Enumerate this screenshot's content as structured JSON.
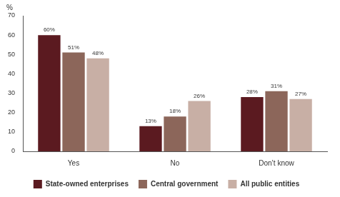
{
  "chart_data": {
    "type": "bar",
    "ylabel": "%",
    "categories": [
      "Yes",
      "No",
      "Don’t know"
    ],
    "series": [
      {
        "name": "State-owned enterprises",
        "color": "#5b1a20",
        "values": [
          60,
          13,
          28
        ],
        "value_labels": [
          "60%",
          "13%",
          "28%"
        ]
      },
      {
        "name": "Central government",
        "color": "#8c665a",
        "values": [
          51,
          18,
          31
        ],
        "value_labels": [
          "51%",
          "18%",
          "31%"
        ]
      },
      {
        "name": "All public entities",
        "color": "#c8afa5",
        "values": [
          48,
          26,
          27
        ],
        "value_labels": [
          "48%",
          "26%",
          "27%"
        ]
      }
    ],
    "ylim": [
      0,
      70
    ],
    "yticks": [
      0,
      10,
      20,
      30,
      40,
      50,
      60,
      70
    ],
    "grid": false,
    "legend": "bottom",
    "data_labels": true
  }
}
